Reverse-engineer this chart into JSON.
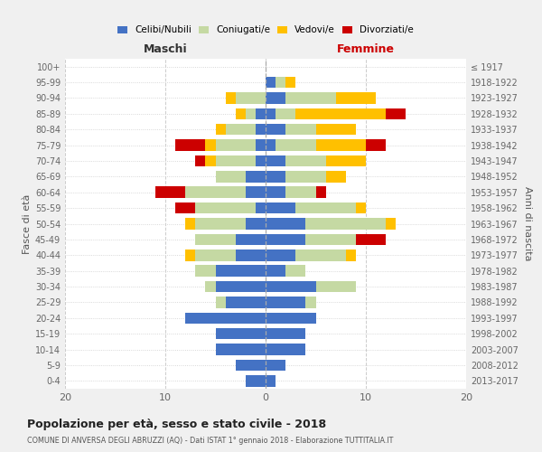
{
  "age_groups": [
    "0-4",
    "5-9",
    "10-14",
    "15-19",
    "20-24",
    "25-29",
    "30-34",
    "35-39",
    "40-44",
    "45-49",
    "50-54",
    "55-59",
    "60-64",
    "65-69",
    "70-74",
    "75-79",
    "80-84",
    "85-89",
    "90-94",
    "95-99",
    "100+"
  ],
  "birth_years": [
    "2013-2017",
    "2008-2012",
    "2003-2007",
    "1998-2002",
    "1993-1997",
    "1988-1992",
    "1983-1987",
    "1978-1982",
    "1973-1977",
    "1968-1972",
    "1963-1967",
    "1958-1962",
    "1953-1957",
    "1948-1952",
    "1943-1947",
    "1938-1942",
    "1933-1937",
    "1928-1932",
    "1923-1927",
    "1918-1922",
    "≤ 1917"
  ],
  "males": {
    "celibi": [
      2,
      3,
      5,
      5,
      8,
      4,
      5,
      5,
      3,
      3,
      2,
      1,
      2,
      2,
      1,
      1,
      1,
      1,
      0,
      0,
      0
    ],
    "coniugati": [
      0,
      0,
      0,
      0,
      0,
      1,
      1,
      2,
      4,
      4,
      5,
      6,
      6,
      3,
      4,
      4,
      3,
      1,
      3,
      0,
      0
    ],
    "vedovi": [
      0,
      0,
      0,
      0,
      0,
      0,
      0,
      0,
      1,
      0,
      1,
      0,
      0,
      0,
      1,
      1,
      1,
      1,
      1,
      0,
      0
    ],
    "divorziati": [
      0,
      0,
      0,
      0,
      0,
      0,
      0,
      0,
      0,
      0,
      0,
      2,
      3,
      0,
      1,
      3,
      0,
      0,
      0,
      0,
      0
    ]
  },
  "females": {
    "nubili": [
      1,
      2,
      4,
      4,
      5,
      4,
      5,
      2,
      3,
      4,
      4,
      3,
      2,
      2,
      2,
      1,
      2,
      1,
      2,
      1,
      0
    ],
    "coniugate": [
      0,
      0,
      0,
      0,
      0,
      1,
      4,
      2,
      5,
      5,
      8,
      6,
      3,
      4,
      4,
      4,
      3,
      2,
      5,
      1,
      0
    ],
    "vedove": [
      0,
      0,
      0,
      0,
      0,
      0,
      0,
      0,
      1,
      0,
      1,
      1,
      0,
      2,
      4,
      5,
      4,
      9,
      4,
      1,
      0
    ],
    "divorziate": [
      0,
      0,
      0,
      0,
      0,
      0,
      0,
      0,
      0,
      3,
      0,
      0,
      1,
      0,
      0,
      2,
      0,
      2,
      0,
      0,
      0
    ]
  },
  "colors": {
    "celibi": "#4472c4",
    "coniugati": "#c5d9a3",
    "vedovi": "#ffc000",
    "divorziati": "#cc0000"
  },
  "xlim": 20,
  "title": "Popolazione per età, sesso e stato civile - 2018",
  "subtitle": "COMUNE DI ANVERSA DEGLI ABRUZZI (AQ) - Dati ISTAT 1° gennaio 2018 - Elaborazione TUTTITALIA.IT",
  "ylabel_left": "Fasce di età",
  "ylabel_right": "Anni di nascita",
  "xlabel_left": "Maschi",
  "xlabel_right": "Femmine",
  "legend_labels": [
    "Celibi/Nubili",
    "Coniugati/e",
    "Vedovi/e",
    "Divorziati/e"
  ],
  "bg_color": "#f0f0f0",
  "plot_bg_color": "#ffffff"
}
